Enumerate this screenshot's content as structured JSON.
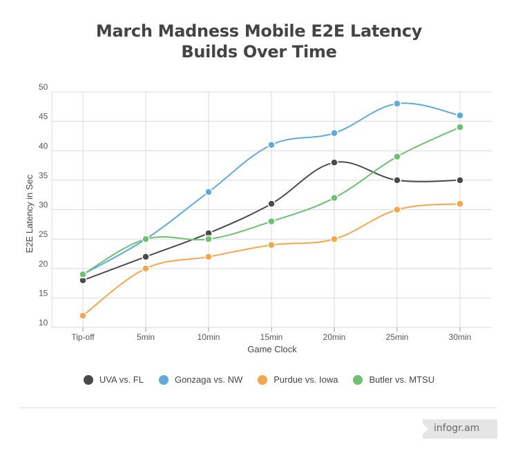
{
  "chart_data": {
    "type": "line",
    "title_lines": [
      "March Madness Mobile E2E Latency",
      "Builds Over Time"
    ],
    "xlabel": "Game Clock",
    "ylabel": "E2E Latency in Sec",
    "categories": [
      "Tip-off",
      "5min",
      "10min",
      "15min",
      "20min",
      "25min",
      "30min"
    ],
    "ylim": [
      10,
      50
    ],
    "yticks": [
      10,
      15,
      20,
      25,
      30,
      35,
      40,
      45,
      50
    ],
    "grid": true,
    "legend_position": "bottom",
    "series": [
      {
        "name": "UVA vs. FL",
        "color": "#4a4a4a",
        "values": [
          18,
          22,
          26,
          31,
          38,
          35,
          35
        ]
      },
      {
        "name": "Gonzaga vs. NW",
        "color": "#5ea9dd",
        "values": [
          19,
          25,
          33,
          41,
          43,
          48,
          46
        ]
      },
      {
        "name": "Purdue vs. Iowa",
        "color": "#f7a54a",
        "values": [
          12,
          20,
          22,
          24,
          25,
          30,
          31
        ]
      },
      {
        "name": "Butler vs. MTSU",
        "color": "#6cc070",
        "values": [
          19,
          25,
          25,
          28,
          32,
          39,
          44
        ]
      }
    ]
  },
  "branding": {
    "text": "infogr.am"
  }
}
